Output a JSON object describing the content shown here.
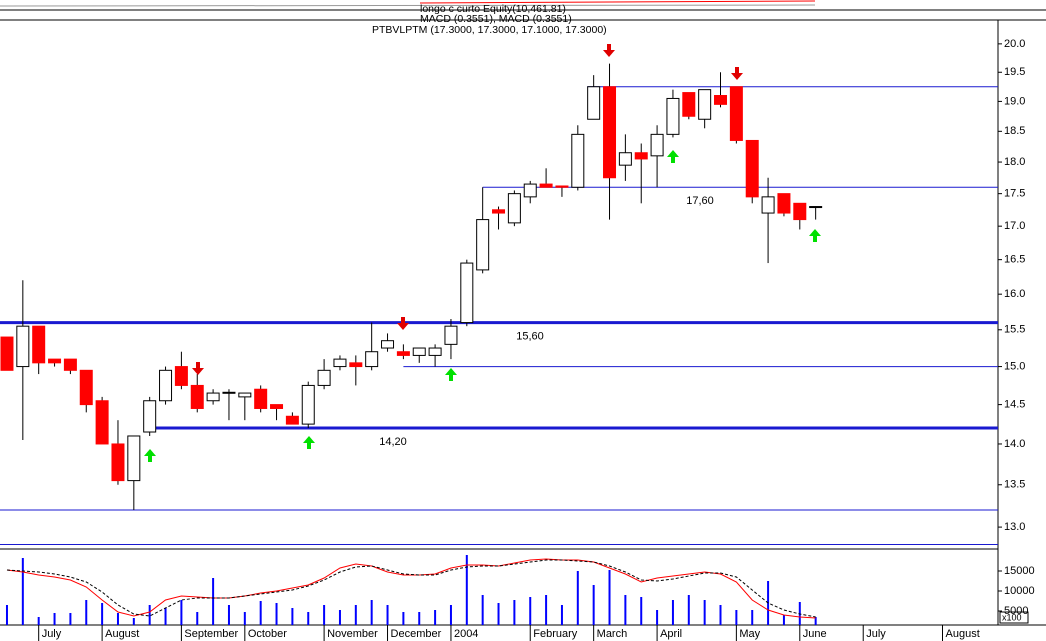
{
  "chart_data": {
    "type": "candlestick",
    "header": [
      "longo c curto Equity(10,461.81)",
      "MACD (0.3551), MACD (0.3551)",
      "PTBVLPTM (17.3000, 17.3000, 17.1000, 17.3000)"
    ],
    "x": [
      0,
      1,
      2,
      3,
      4,
      5,
      6,
      7,
      8,
      9,
      10,
      11,
      12,
      13,
      14,
      15,
      16,
      17,
      18,
      19,
      20,
      21,
      22,
      23,
      24,
      25,
      26,
      27,
      28,
      29,
      30,
      31,
      32,
      33,
      34,
      35,
      36,
      37,
      38,
      39,
      40,
      41,
      42,
      43,
      44,
      45,
      46,
      47,
      48,
      49,
      50,
      51
    ],
    "open": [
      15.4,
      15.0,
      15.55,
      15.1,
      15.1,
      14.95,
      14.55,
      14.0,
      13.55,
      14.15,
      14.55,
      15.0,
      14.75,
      14.55,
      14.65,
      14.6,
      14.7,
      14.5,
      14.35,
      14.25,
      14.75,
      15.0,
      15.05,
      15.0,
      15.25,
      15.2,
      15.15,
      15.15,
      15.3,
      15.6,
      16.35,
      17.25,
      17.05,
      17.45,
      17.65,
      17.62,
      17.6,
      18.7,
      19.25,
      17.95,
      18.15,
      18.1,
      18.45,
      19.15,
      18.7,
      19.1,
      19.25,
      18.35,
      17.2,
      17.5,
      17.35,
      17.3
    ],
    "high": [
      15.4,
      16.2,
      15.55,
      15.1,
      15.1,
      14.95,
      14.6,
      14.3,
      14.1,
      14.6,
      15.0,
      15.2,
      14.9,
      14.7,
      14.7,
      14.65,
      14.75,
      14.5,
      14.4,
      14.8,
      15.1,
      15.15,
      15.15,
      15.6,
      15.45,
      15.3,
      15.25,
      15.3,
      15.65,
      16.5,
      17.6,
      17.3,
      17.55,
      17.7,
      17.9,
      17.62,
      18.6,
      19.45,
      19.65,
      18.45,
      18.3,
      18.6,
      19.2,
      19.15,
      19.2,
      19.5,
      19.25,
      18.35,
      17.75,
      17.5,
      17.35,
      17.3
    ],
    "low": [
      14.95,
      14.05,
      14.9,
      15.0,
      14.9,
      14.4,
      14.0,
      13.5,
      13.2,
      14.1,
      14.5,
      14.7,
      14.4,
      14.5,
      14.3,
      14.3,
      14.4,
      14.3,
      14.25,
      14.2,
      14.7,
      14.95,
      14.75,
      14.95,
      15.2,
      15.1,
      15.05,
      15.0,
      15.1,
      15.55,
      16.3,
      16.95,
      17.0,
      17.35,
      17.6,
      17.45,
      17.55,
      18.7,
      17.1,
      17.7,
      17.35,
      17.6,
      18.4,
      18.7,
      18.55,
      18.9,
      18.3,
      17.35,
      16.45,
      17.15,
      16.95,
      17.1
    ],
    "close": [
      14.95,
      15.55,
      15.05,
      15.05,
      14.95,
      14.5,
      14.0,
      13.55,
      14.1,
      14.55,
      14.95,
      14.75,
      14.45,
      14.65,
      14.66,
      14.65,
      14.45,
      14.45,
      14.25,
      14.75,
      14.95,
      15.1,
      15.0,
      15.2,
      15.35,
      15.15,
      15.25,
      15.25,
      15.55,
      16.45,
      17.1,
      17.2,
      17.5,
      17.65,
      17.6,
      17.6,
      18.45,
      19.25,
      17.75,
      18.15,
      18.05,
      18.45,
      19.05,
      18.75,
      19.2,
      18.95,
      18.35,
      17.45,
      17.45,
      17.2,
      17.1,
      17.3
    ],
    "up_color": "#ffffff",
    "down_color": "#ff0000",
    "xlim": [
      -0.44,
      62.5
    ],
    "xticks": [
      {
        "value": 2,
        "label": "July"
      },
      {
        "value": 6,
        "label": "August"
      },
      {
        "value": 11,
        "label": "September"
      },
      {
        "value": 15,
        "label": "October"
      },
      {
        "value": 20,
        "label": "November"
      },
      {
        "value": 24,
        "label": "December"
      },
      {
        "value": 28,
        "label": "2004"
      },
      {
        "value": 33,
        "label": "February"
      },
      {
        "value": 37,
        "label": "March"
      },
      {
        "value": 41,
        "label": "April"
      },
      {
        "value": 46,
        "label": "May"
      },
      {
        "value": 50,
        "label": "June"
      },
      {
        "value": 54,
        "label": "July"
      },
      {
        "value": 59,
        "label": "August"
      }
    ],
    "ylim": [
      12.76,
      20.43
    ],
    "log_scale": true,
    "yticks": [
      {
        "value": 13,
        "label": "13.0"
      },
      13.5,
      {
        "value": 14,
        "label": "14.0"
      },
      14.5,
      {
        "value": 15,
        "label": "15.0"
      },
      15.5,
      {
        "value": 16,
        "label": "16.0"
      },
      16.5,
      {
        "value": 17,
        "label": "17.0"
      },
      17.5,
      {
        "value": 18,
        "label": "18.0"
      },
      18.5,
      {
        "value": 19,
        "label": "19.0"
      },
      19.5,
      {
        "value": 20,
        "label": "20.0"
      }
    ],
    "levels": [
      {
        "value": 19.25,
        "from": 36.6
      },
      {
        "value": 17.6,
        "from": 30,
        "label": "17,60"
      },
      {
        "value": 15.6,
        "bold": true,
        "label": "15,60"
      },
      {
        "value": 15.0,
        "from": 25
      },
      {
        "value": 14.2,
        "from": 9,
        "bold": true,
        "label": "14,20"
      },
      {
        "value": 13.2
      },
      {
        "value": 12.8
      }
    ],
    "level_color": "#1a1ad0",
    "volume": {
      "values": [
        6500,
        18250,
        3500,
        4500,
        4500,
        7750,
        7000,
        4500,
        3250,
        6500,
        5750,
        7750,
        4750,
        13250,
        6500,
        4750,
        7500,
        7000,
        5750,
        4750,
        6500,
        5250,
        6500,
        7750,
        6500,
        4750,
        4750,
        5250,
        6500,
        19000,
        9000,
        7000,
        7750,
        8500,
        9000,
        6500,
        15000,
        11500,
        15250,
        9000,
        8500,
        5250,
        7750,
        9000,
        7750,
        6500,
        5250,
        5250,
        12500,
        4000,
        7250,
        3500
      ],
      "color": "#0000ff",
      "ylim": [
        1500,
        20000
      ],
      "yticks": [
        5000,
        10000,
        15000
      ],
      "unit_label": "x100",
      "lines": [
        {
          "color": "#ff0000",
          "dashed": false,
          "values": [
            15250,
            14750,
            14000,
            13500,
            12750,
            11000,
            7750,
            4750,
            3750,
            4750,
            7750,
            8750,
            8500,
            8250,
            8250,
            8750,
            9500,
            10000,
            10750,
            11500,
            13250,
            15750,
            16750,
            16250,
            14750,
            14000,
            14000,
            14250,
            15750,
            16500,
            16500,
            16250,
            17000,
            17750,
            18000,
            17750,
            17750,
            17250,
            15750,
            14250,
            12250,
            13250,
            13750,
            14250,
            14750,
            14250,
            12250,
            7750,
            5250,
            4000,
            3500,
            3250
          ]
        },
        {
          "color": "#000000",
          "dashed": true,
          "values": [
            15250,
            15000,
            14750,
            14250,
            13500,
            12250,
            9750,
            6500,
            4250,
            3750,
            5750,
            7750,
            8250,
            8250,
            8250,
            8750,
            9250,
            9750,
            10250,
            11250,
            12750,
            14750,
            16000,
            16250,
            15250,
            14250,
            14000,
            14000,
            15250,
            16000,
            16250,
            16250,
            16750,
            17250,
            17750,
            17750,
            17500,
            17250,
            16250,
            14750,
            12750,
            12500,
            13000,
            13750,
            14500,
            14500,
            13500,
            10250,
            7000,
            5250,
            4250,
            3500
          ]
        }
      ]
    }
  }
}
